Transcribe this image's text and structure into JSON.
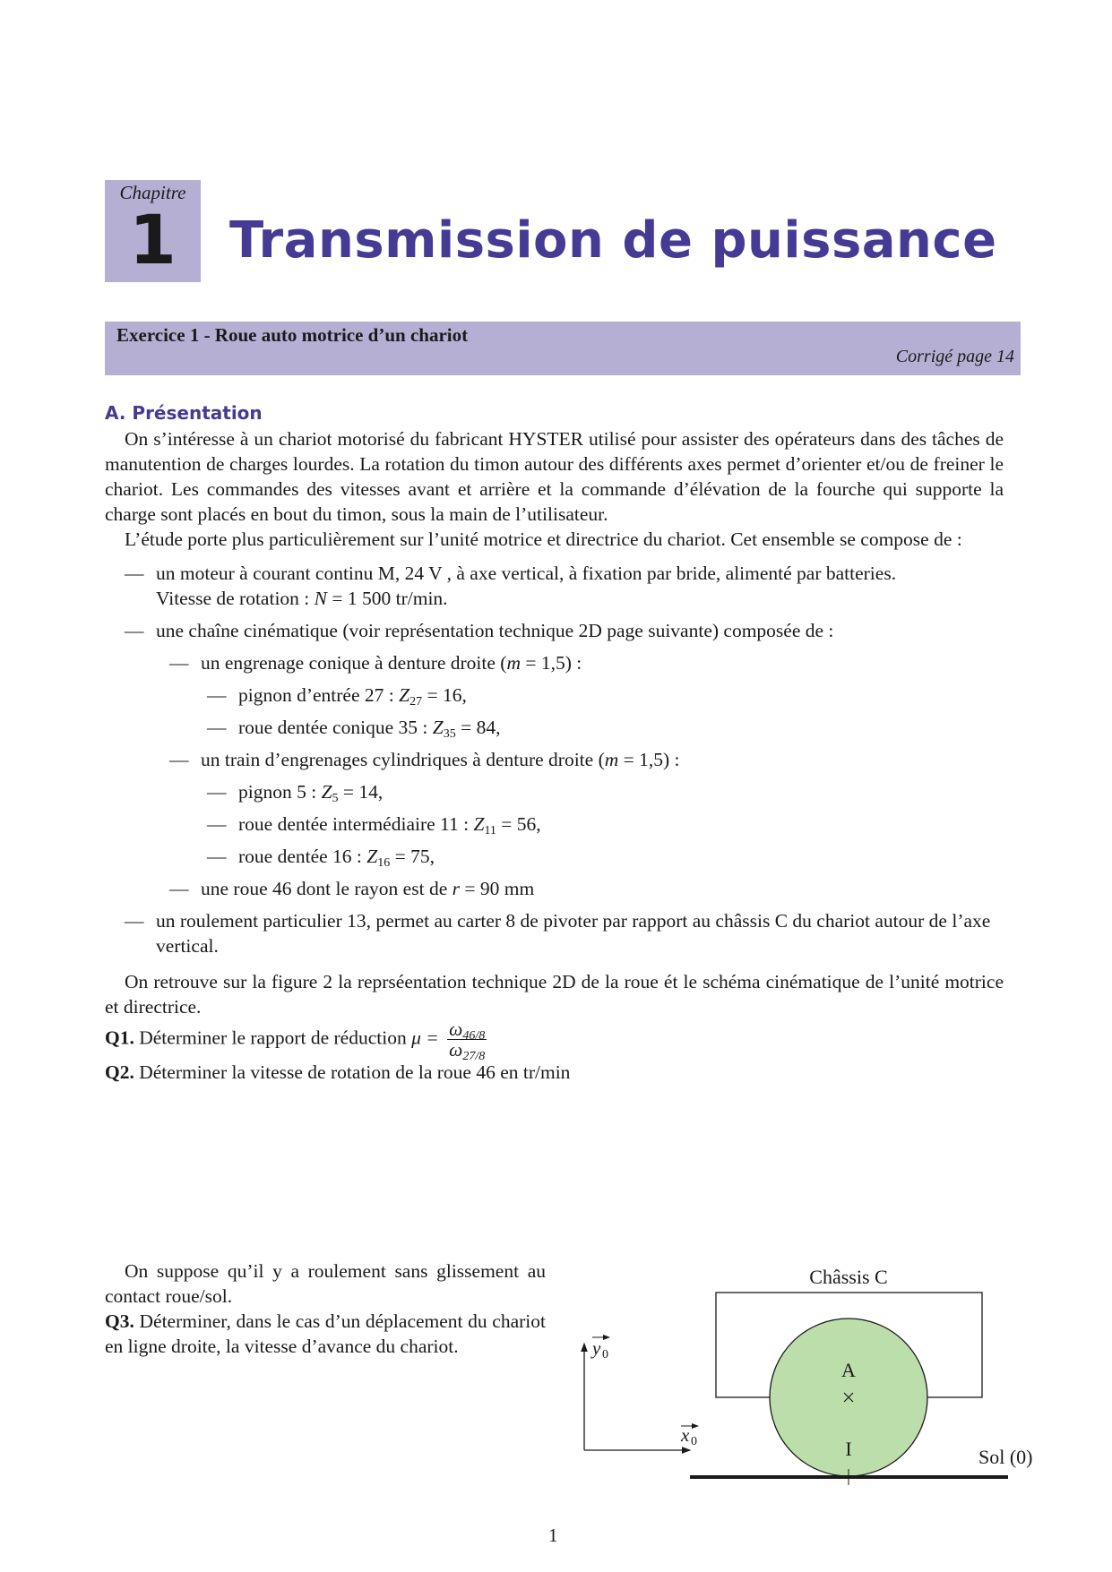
{
  "chapter": {
    "label": "Chapitre",
    "number": "1",
    "title": "Transmission de puissance"
  },
  "exercise": {
    "title": "Exercice 1 - Roue auto motrice d’un chariot",
    "correction": "Corrigé page 14"
  },
  "section": {
    "title": "A. Présentation"
  },
  "paragraphs": [
    "On s’intéresse à un chariot motorisé du fabricant HYSTER utilisé pour assister des opérateurs dans des tâches de manutention de charges lourdes. La rotation du timon autour des différents axes permet d’orienter et/ou de freiner le chariot. Les commandes des vitesses avant et arrière et la commande d’élévation de la fourche qui supporte la charge sont placés en bout du timon, sous la main de l’utilisateur.",
    "L’étude porte plus particulièrement sur l’unité motrice et directrice du chariot. Cet ensemble se compose de :"
  ],
  "dash": "—",
  "list": {
    "motor": {
      "text": "un moteur à courant continu M, 24 V , à axe vertical, à fixation par bride, alimenté par batteries.",
      "speed_prefix": "Vitesse de rotation : ",
      "speed_var": "N",
      "speed_value": " = 1 500 tr/min."
    },
    "chain": "une chaîne cinématique (voir représentation technique 2D page suivante) composée de :",
    "bevel": {
      "prefix": "un engrenage conique à denture droite (",
      "var": "m",
      "suffix": " = 1,5) :"
    },
    "bevel_items": [
      {
        "prefix": "pignon d’entrée 27 : ",
        "var": "Z",
        "sub": "27",
        "suffix": " = 16,"
      },
      {
        "prefix": "roue dentée conique 35 : ",
        "var": "Z",
        "sub": "35",
        "suffix": " = 84,"
      }
    ],
    "train": {
      "prefix": "un train d’engrenages cylindriques à denture droite (",
      "var": "m",
      "suffix": " = 1,5) :"
    },
    "train_items": [
      {
        "prefix": "pignon 5 : ",
        "var": "Z",
        "sub": "5",
        "suffix": " = 14,"
      },
      {
        "prefix": "roue dentée intermédiaire 11 : ",
        "var": "Z",
        "sub": "11",
        "suffix": " = 56,"
      },
      {
        "prefix": "roue dentée 16 : ",
        "var": "Z",
        "sub": "16",
        "suffix": " = 75,"
      }
    ],
    "wheel": {
      "prefix": "une roue 46 dont le rayon est de ",
      "var": "r",
      "suffix": " = 90 mm"
    },
    "bearing": "un roulement particulier 13, permet au carter 8 de pivoter par rapport au châssis C du chariot autour de l’axe vertical."
  },
  "figure_text": "On retrouve sur la figure 2 la reprséentation technique 2D de la roue ét le schéma cinématique de l’unité motrice et directrice.",
  "questions": {
    "q1": {
      "label": "Q1.",
      "text": " Déterminer le rapport de réduction ",
      "var": "μ = ",
      "num": "ω",
      "num_sub": "46/8",
      "den": "ω",
      "den_sub": "27/8"
    },
    "q2": {
      "label": "Q2.",
      "text": " Déterminer la vitesse de rotation de la roue 46 en tr/min"
    },
    "q3": {
      "label": "Q3.",
      "text": " Déterminer, dans le cas d’un déplacement du chariot en ligne droite, la vitesse d’avance du chariot."
    }
  },
  "rolling_text": "On suppose qu’il y a roulement sans glissement au contact roue/sol.",
  "diagram": {
    "chassis": "Châssis C",
    "point_a": "A",
    "point_i": "I",
    "ground": "Sol (0)",
    "x_axis": "x",
    "y_axis": "y",
    "axis_sub": "0",
    "wheel_color": "#bcdeaa"
  },
  "page_number": "1"
}
